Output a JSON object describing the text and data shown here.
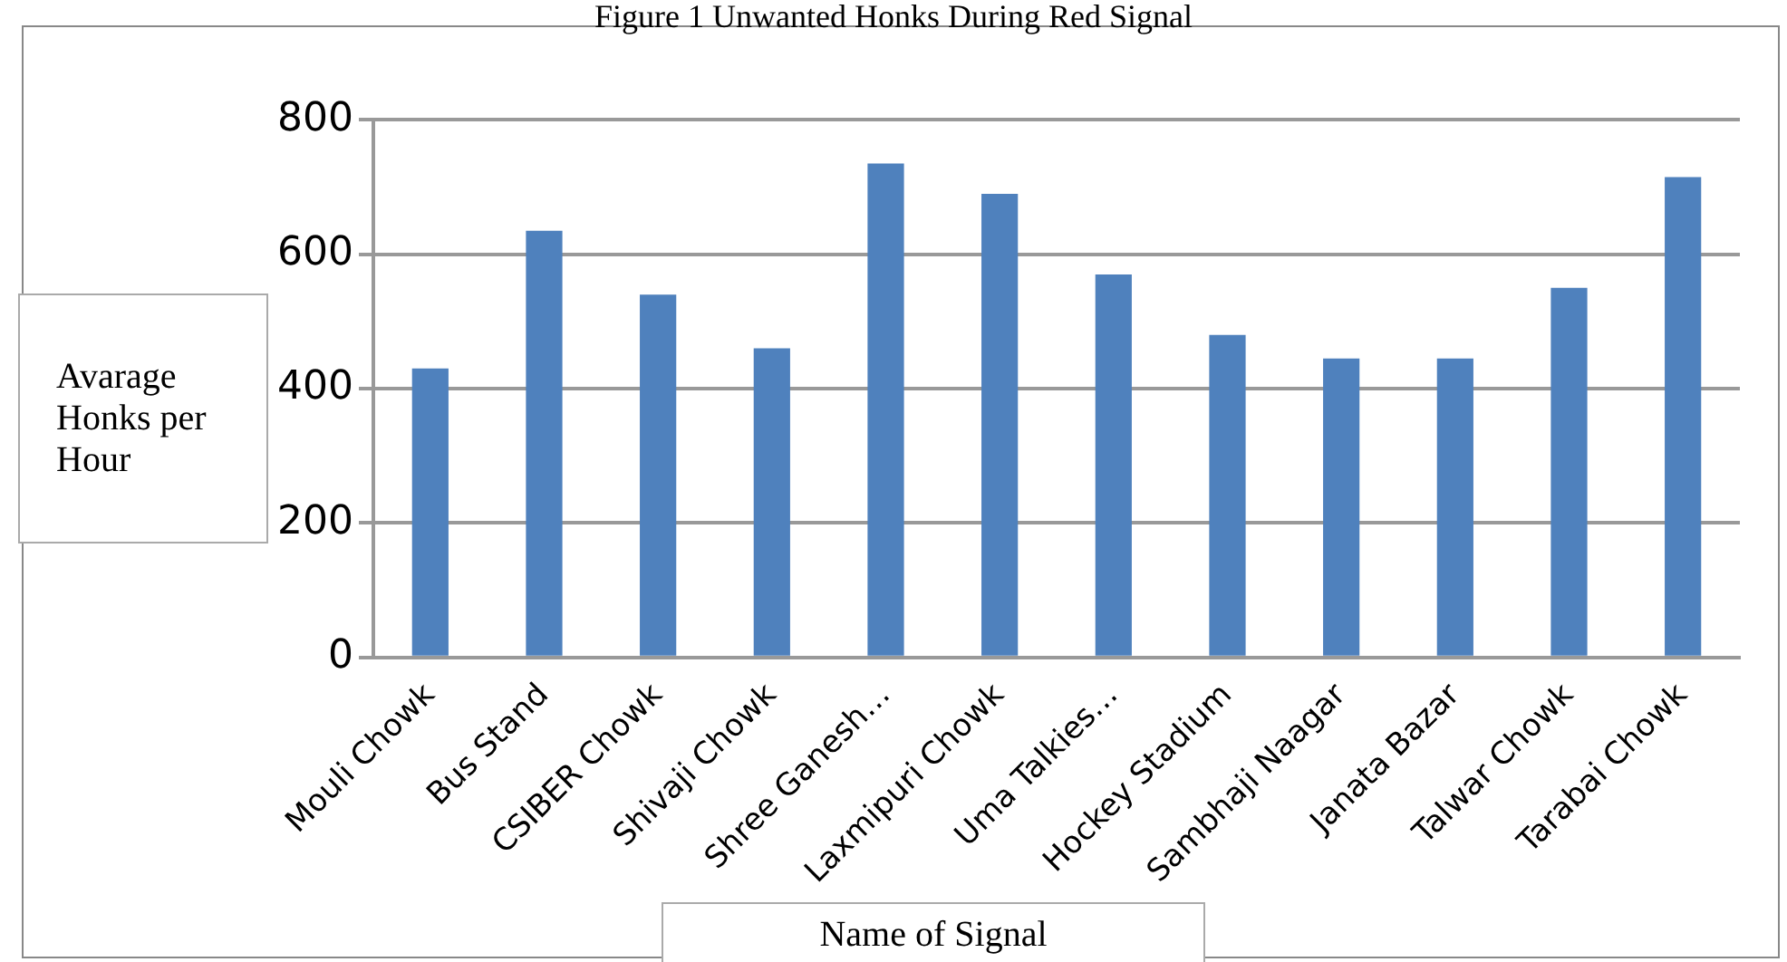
{
  "chart_data": {
    "type": "bar",
    "title": "Figure 1 Unwanted Honks During Red Signal",
    "xlabel": "Name of Signal",
    "ylabel": "Avarage Honks per Hour",
    "categories": [
      "Mouli Chowk",
      "Bus Stand",
      "CSIBER Chowk",
      "Shivaji Chowk",
      "Shree Ganesh…",
      "Laxmipuri Chowk",
      "Uma Talkies…",
      "Hockey Stadium",
      "Sambhaji Naagar",
      "Janata Bazar",
      "Talwar Chowk",
      "Tarabai Chowk"
    ],
    "values": [
      430,
      635,
      540,
      460,
      735,
      690,
      570,
      480,
      445,
      445,
      550,
      715
    ],
    "color": "#4f81bd",
    "ylim": [
      0,
      800
    ],
    "yticks": [
      0,
      200,
      400,
      600,
      800
    ],
    "grid": "y",
    "legend": false
  }
}
